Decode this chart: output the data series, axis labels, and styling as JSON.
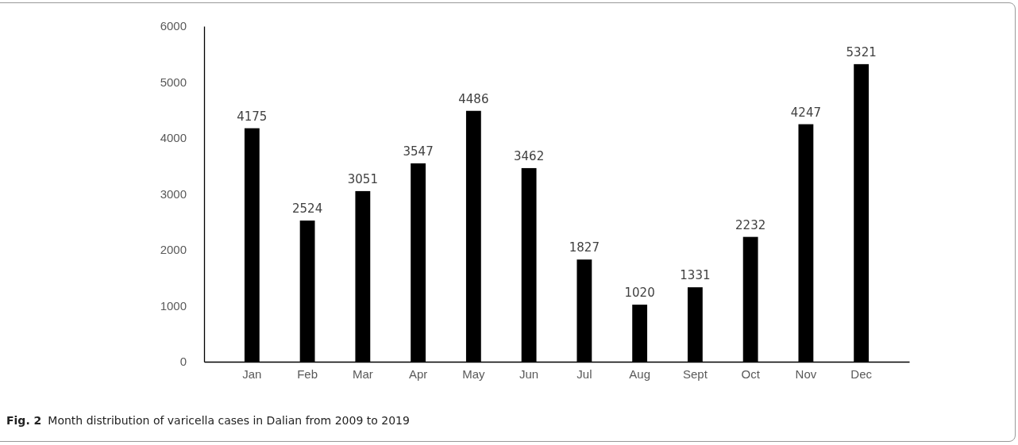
{
  "chart_data": {
    "type": "bar",
    "categories": [
      "Jan",
      "Feb",
      "Mar",
      "Apr",
      "May",
      "Jun",
      "Jul",
      "Aug",
      "Sept",
      "Oct",
      "Nov",
      "Dec"
    ],
    "values": [
      4175,
      2524,
      3051,
      3547,
      4486,
      3462,
      1827,
      1020,
      1331,
      2232,
      4247,
      5321
    ],
    "color": "#000000",
    "ylim": [
      0,
      6000
    ],
    "yticks": [
      0,
      1000,
      2000,
      3000,
      4000,
      5000,
      6000
    ],
    "grid": false,
    "data_labels": true,
    "annotations": [
      "Fig. 2",
      "Month distribution of varicella cases in Dalian from 2009 to 2019"
    ]
  }
}
